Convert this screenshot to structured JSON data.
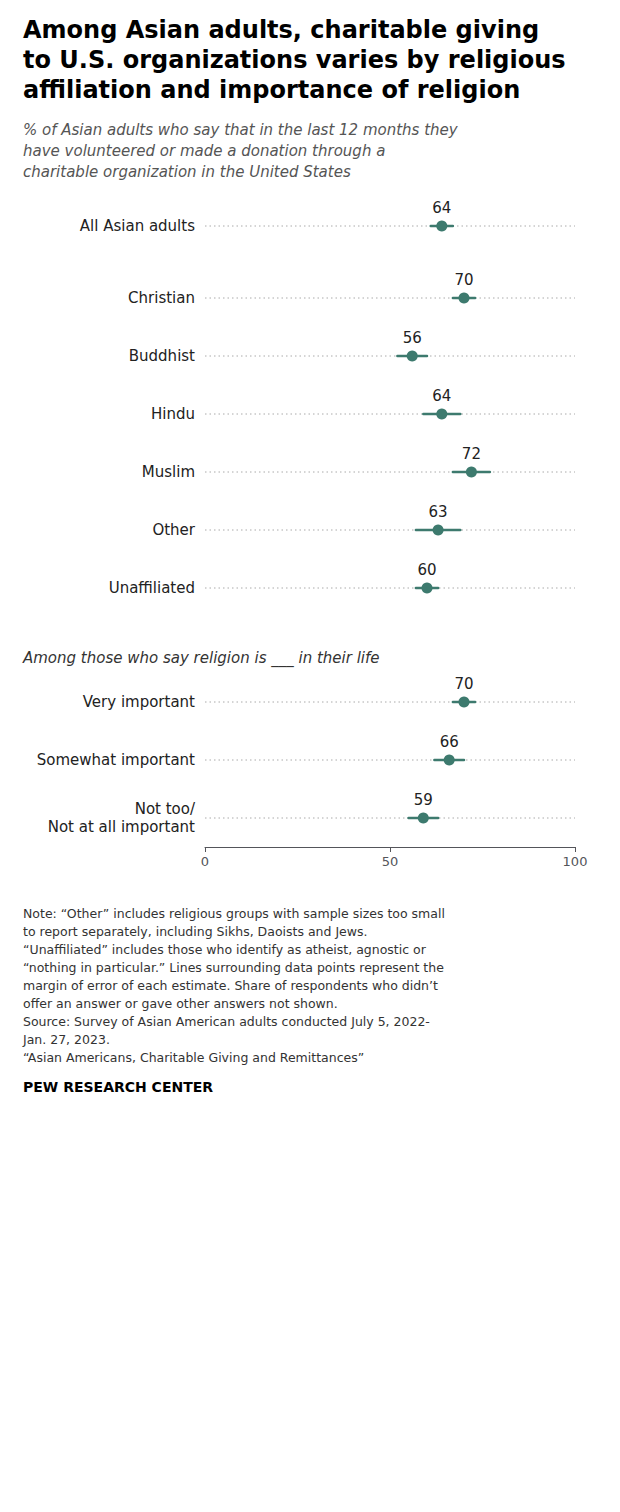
{
  "chart_data": [
    {
      "type": "scatter",
      "orientation": "horizontal",
      "title": "Among Asian adults, charitable giving\nto U.S. organizations varies by religious\naffiliation and importance of religion",
      "subtitle": "% of Asian adults who say that in the last 12 months they\nhave volunteered or made a donation through a\ncharitable organization in the United States",
      "categories": [
        "All Asian adults"
      ],
      "values": [
        64
      ],
      "errors": [
        3
      ],
      "color": "#3d7a6e",
      "xlim": [
        0,
        100
      ],
      "grid": true,
      "data_labels": true,
      "tick_labels": "y"
    },
    {
      "type": "scatter",
      "orientation": "horizontal",
      "categories": [
        "Christian",
        "Buddhist",
        "Hindu",
        "Muslim",
        "Other",
        "Unaffiliated"
      ],
      "values": [
        70,
        56,
        64,
        72,
        63,
        60
      ],
      "errors": [
        3,
        4,
        5,
        5,
        6,
        3
      ],
      "color": "#3d7a6e",
      "xlim": [
        0,
        100
      ],
      "grid": true,
      "data_labels": true,
      "tick_labels": "y"
    },
    {
      "type": "scatter",
      "orientation": "horizontal",
      "subtitle": "Among those who say religion is ___ in their life",
      "categories": [
        "Very important",
        "Somewhat important",
        "Not too/\nNot at all important"
      ],
      "values": [
        70,
        66,
        59
      ],
      "errors": [
        3,
        4,
        4
      ],
      "color": "#3d7a6e",
      "xlim": [
        0,
        100
      ],
      "xticks": [
        0,
        50,
        100
      ],
      "grid": true,
      "data_labels": true,
      "note": [
        "Note: “Other” includes religious groups with sample sizes too small",
        "to report separately, including Sikhs, Daoists and Jews.",
        "“Unaffiliated” includes those who identify as atheist, agnostic or",
        "“nothing in particular.” Lines surrounding data points represent the",
        "margin of error of each estimate. Share of respondents who didn’t",
        "offer an answer or gave other answers not shown.",
        "Source: Survey of Asian American adults conducted July 5, 2022-",
        "Jan. 27, 2023.",
        "“Asian Americans, Charitable Giving and Remittances”"
      ],
      "source": "PEW RESEARCH CENTER"
    }
  ]
}
